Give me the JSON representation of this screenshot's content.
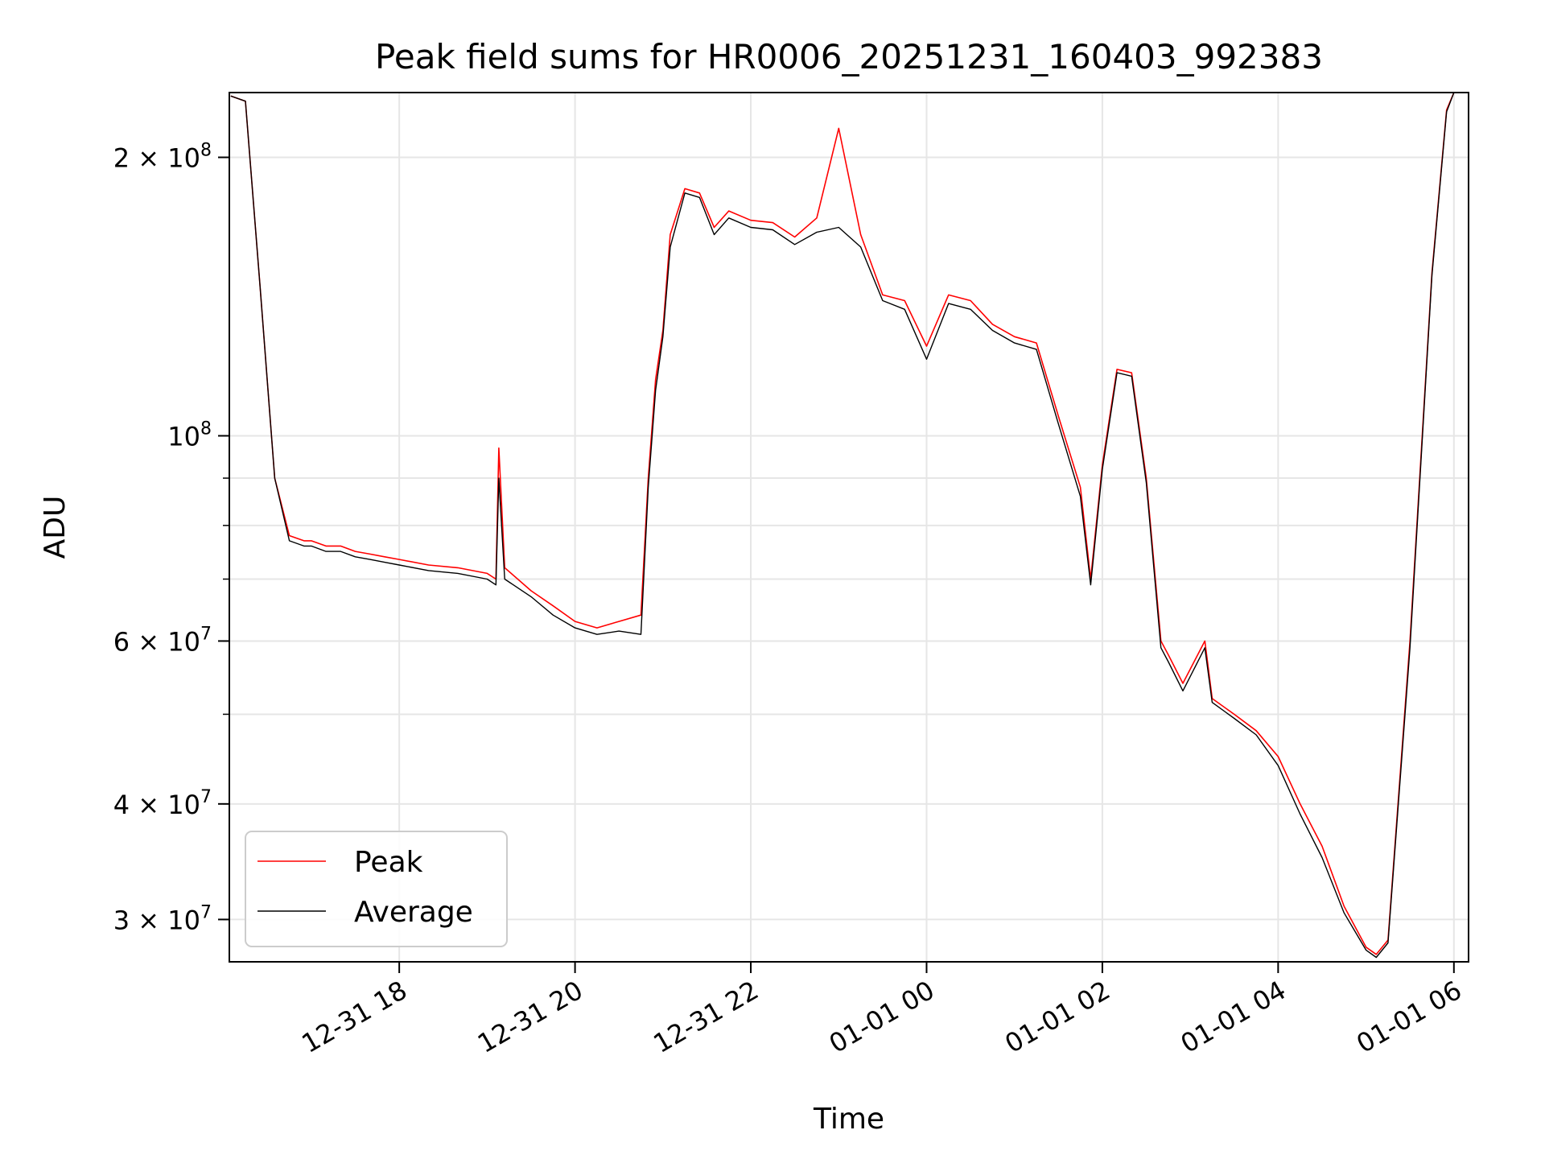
{
  "chart_data": {
    "type": "line",
    "title": "Peak field sums for HR0006_20251231_160403_992383",
    "xlabel": "Time",
    "ylabel": "ADU",
    "yscale": "log",
    "ylim": [
      27000000,
      235000000
    ],
    "xlim": [
      "12-31 16:04",
      "01-01 06:10"
    ],
    "grid": true,
    "legend": "lower-left",
    "x_ticks": [
      "12-31 18",
      "12-31 20",
      "12-31 22",
      "01-01 00",
      "01-01 02",
      "01-01 04",
      "01-01 06"
    ],
    "y_ticks": [
      {
        "value": 30000000,
        "mant": "3",
        "exp": "7"
      },
      {
        "value": 40000000,
        "mant": "4",
        "exp": "7"
      },
      {
        "value": 60000000,
        "mant": "6",
        "exp": "7"
      },
      {
        "value": 100000000,
        "mant": "",
        "exp": "8"
      },
      {
        "value": 200000000,
        "mant": "2",
        "exp": "8"
      }
    ],
    "x": [
      "12-31 16:05",
      "12-31 16:15",
      "12-31 16:25",
      "12-31 16:35",
      "12-31 16:45",
      "12-31 16:55",
      "12-31 17:00",
      "12-31 17:10",
      "12-31 17:20",
      "12-31 17:30",
      "12-31 17:40",
      "12-31 17:50",
      "12-31 18:00",
      "12-31 18:20",
      "12-31 18:40",
      "12-31 19:00",
      "12-31 19:06",
      "12-31 19:08",
      "12-31 19:12",
      "12-31 19:30",
      "12-31 19:45",
      "12-31 20:00",
      "12-31 20:15",
      "12-31 20:30",
      "12-31 20:45",
      "12-31 20:50",
      "12-31 20:55",
      "12-31 21:00",
      "12-31 21:05",
      "12-31 21:15",
      "12-31 21:25",
      "12-31 21:35",
      "12-31 21:45",
      "12-31 22:00",
      "12-31 22:15",
      "12-31 22:30",
      "12-31 22:45",
      "12-31 23:00",
      "12-31 23:15",
      "12-31 23:30",
      "12-31 23:45",
      "01-01 00:00",
      "01-01 00:15",
      "01-01 00:30",
      "01-01 00:45",
      "01-01 01:00",
      "01-01 01:15",
      "01-01 01:30",
      "01-01 01:45",
      "01-01 01:52",
      "01-01 02:00",
      "01-01 02:10",
      "01-01 02:20",
      "01-01 02:30",
      "01-01 02:40",
      "01-01 02:45",
      "01-01 02:55",
      "01-01 03:10",
      "01-01 03:15",
      "01-01 03:30",
      "01-01 03:45",
      "01-01 04:00",
      "01-01 04:15",
      "01-01 04:30",
      "01-01 04:45",
      "01-01 05:00",
      "01-01 05:07",
      "01-01 05:15",
      "01-01 05:30",
      "01-01 05:45",
      "01-01 05:55",
      "01-01 06:00"
    ],
    "series": [
      {
        "name": "Peak",
        "color": "#ff0000",
        "values": [
          233000000,
          230000000,
          145000000,
          90000000,
          78000000,
          77000000,
          77000000,
          76000000,
          76000000,
          75000000,
          74500000,
          74000000,
          73500000,
          72500000,
          72000000,
          71000000,
          70000000,
          97000000,
          72000000,
          68000000,
          65500000,
          63000000,
          62000000,
          63000000,
          64000000,
          90000000,
          115000000,
          130000000,
          165000000,
          185000000,
          183000000,
          168000000,
          175000000,
          171000000,
          170000000,
          164000000,
          172000000,
          215000000,
          165000000,
          142000000,
          140000000,
          125000000,
          142000000,
          140000000,
          132000000,
          128000000,
          126000000,
          105000000,
          88000000,
          70000000,
          93000000,
          118000000,
          117000000,
          90000000,
          60000000,
          58000000,
          54000000,
          60000000,
          52000000,
          50000000,
          48000000,
          45000000,
          40000000,
          36000000,
          31000000,
          28000000,
          27500000,
          28500000,
          60000000,
          150000000,
          225000000,
          235000000
        ]
      },
      {
        "name": "Average",
        "color": "#000000",
        "values": [
          233000000,
          230000000,
          145000000,
          90000000,
          77000000,
          76000000,
          76000000,
          75000000,
          75000000,
          74000000,
          73500000,
          73000000,
          72500000,
          71500000,
          71000000,
          70000000,
          69000000,
          90000000,
          70000000,
          67000000,
          64000000,
          62000000,
          61000000,
          61500000,
          61000000,
          88000000,
          112000000,
          128000000,
          160000000,
          183000000,
          181000000,
          165000000,
          172000000,
          168000000,
          167000000,
          161000000,
          166000000,
          168000000,
          160000000,
          140000000,
          137000000,
          121000000,
          139000000,
          137000000,
          130000000,
          126000000,
          124000000,
          103000000,
          86000000,
          69000000,
          92000000,
          117000000,
          116000000,
          89000000,
          59000000,
          57000000,
          53000000,
          59000000,
          51500000,
          49500000,
          47500000,
          44000000,
          39000000,
          35000000,
          30500000,
          27800000,
          27300000,
          28300000,
          59000000,
          149000000,
          224000000,
          235000000
        ]
      }
    ]
  }
}
